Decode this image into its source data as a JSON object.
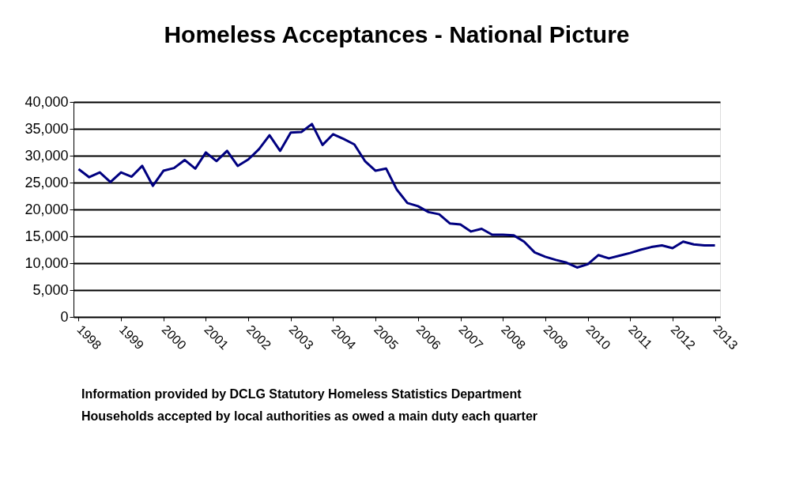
{
  "chart_data": {
    "type": "line",
    "title": "Homeless Acceptances - National Picture",
    "x": [
      1998.0,
      1998.25,
      1998.5,
      1998.75,
      1999.0,
      1999.25,
      1999.5,
      1999.75,
      2000.0,
      2000.25,
      2000.5,
      2000.75,
      2001.0,
      2001.25,
      2001.5,
      2001.75,
      2002.0,
      2002.25,
      2002.5,
      2002.75,
      2003.0,
      2003.25,
      2003.5,
      2003.75,
      2004.0,
      2004.25,
      2004.5,
      2004.75,
      2005.0,
      2005.25,
      2005.5,
      2005.75,
      2006.0,
      2006.25,
      2006.5,
      2006.75,
      2007.0,
      2007.25,
      2007.5,
      2007.75,
      2008.0,
      2008.25,
      2008.5,
      2008.75,
      2009.0,
      2009.25,
      2009.5,
      2009.75,
      2010.0,
      2010.25,
      2010.5,
      2010.75,
      2011.0,
      2011.25,
      2011.5,
      2011.75,
      2012.0,
      2012.25,
      2012.5,
      2012.75,
      2013.0
    ],
    "series": [
      {
        "color": "#000080",
        "values": [
          27500,
          26000,
          26900,
          25100,
          26900,
          26100,
          28100,
          24400,
          27200,
          27700,
          29200,
          27600,
          30600,
          29000,
          30900,
          28100,
          29300,
          31200,
          33800,
          30900,
          34300,
          34400,
          35900,
          32000,
          34000,
          33100,
          32100,
          29000,
          27200,
          27600,
          23700,
          21200,
          20600,
          19500,
          19100,
          17400,
          17200,
          15900,
          16400,
          15300,
          15300,
          15200,
          14000,
          12000,
          11200,
          10600,
          10100,
          9200,
          9800,
          11500,
          10900,
          11400,
          11900,
          12500,
          13000,
          13300,
          12800,
          14000,
          13500,
          13300,
          13300
        ]
      }
    ],
    "xlim": [
      1997.88,
      2013.12
    ],
    "xticks": [
      1998,
      1999,
      2000,
      2001,
      2002,
      2003,
      2004,
      2005,
      2006,
      2007,
      2008,
      2009,
      2010,
      2011,
      2012,
      2013
    ],
    "ylim": [
      0,
      40000
    ],
    "yticks": [
      {
        "value": 0,
        "label": "0"
      },
      {
        "value": 5000,
        "label": "5,000"
      },
      {
        "value": 10000,
        "label": "10,000"
      },
      {
        "value": 15000,
        "label": "15,000"
      },
      {
        "value": 20000,
        "label": "20,000"
      },
      {
        "value": 25000,
        "label": "25,000"
      },
      {
        "value": 30000,
        "label": "30,000"
      },
      {
        "value": 35000,
        "label": "35,000"
      },
      {
        "value": 40000,
        "label": "40,000"
      }
    ],
    "grid": "y",
    "marker": "none",
    "line_style": "solid",
    "annotations": [
      "Information provided by DCLG Statutory Homeless Statistics Department",
      "Households accepted by local authorities as owed a main duty each quarter"
    ]
  }
}
